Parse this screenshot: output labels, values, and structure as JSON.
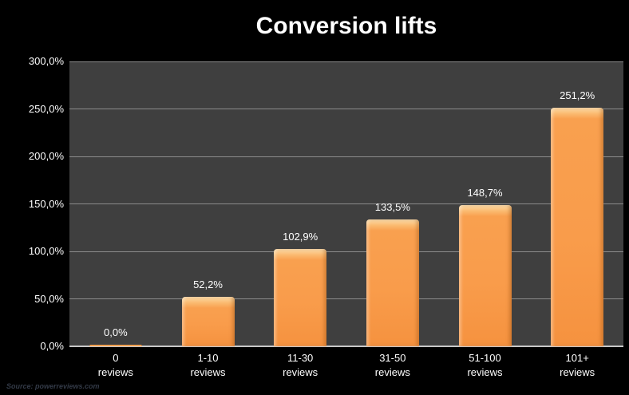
{
  "title": "Conversion lifts",
  "source_note": "Source: powerreviews.com",
  "colors": {
    "background": "#000000",
    "plot_background": "#3F3F3F",
    "gridline": "#8C8C8C",
    "zero_axis_line": "#C8C8C8",
    "bar_orange": "#F9A04F",
    "bar_bevel_light": "#FDDFAC",
    "label_text": "#FFFFFF",
    "source_text": "#333A47"
  },
  "chart_data": {
    "type": "bar",
    "title": "Conversion lifts",
    "categories": [
      "0\nreviews",
      "1-10\nreviews",
      "11-30\nreviews",
      "31-50\nreviews",
      "51-100\nreviews",
      "101+\nreviews"
    ],
    "values": [
      0.0,
      52.2,
      102.9,
      133.5,
      148.7,
      251.2
    ],
    "value_labels": [
      "0,0%",
      "52,2%",
      "102,9%",
      "133,5%",
      "148,7%",
      "251,2%"
    ],
    "xlabel": "",
    "ylabel": "",
    "ylim": [
      0,
      300
    ],
    "ytick_step": 50,
    "ytick_labels": [
      "0,0%",
      "50,0%",
      "100,0%",
      "150,0%",
      "200,0%",
      "250,0%",
      "300,0%"
    ],
    "grid": true,
    "legend": "none",
    "source": "Source: powerreviews.com"
  }
}
